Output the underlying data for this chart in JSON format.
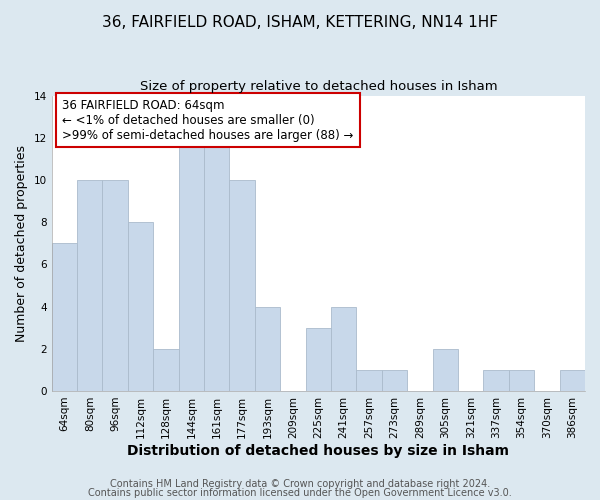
{
  "title": "36, FAIRFIELD ROAD, ISHAM, KETTERING, NN14 1HF",
  "subtitle": "Size of property relative to detached houses in Isham",
  "xlabel": "Distribution of detached houses by size in Isham",
  "ylabel": "Number of detached properties",
  "categories": [
    "64sqm",
    "80sqm",
    "96sqm",
    "112sqm",
    "128sqm",
    "144sqm",
    "161sqm",
    "177sqm",
    "193sqm",
    "209sqm",
    "225sqm",
    "241sqm",
    "257sqm",
    "273sqm",
    "289sqm",
    "305sqm",
    "321sqm",
    "337sqm",
    "354sqm",
    "370sqm",
    "386sqm"
  ],
  "values": [
    7,
    10,
    10,
    8,
    2,
    12,
    12,
    10,
    4,
    0,
    3,
    4,
    1,
    1,
    0,
    2,
    0,
    1,
    1,
    0,
    1
  ],
  "bar_color": "#c8d8ea",
  "bar_edge_color": "#aabbcc",
  "annotation_box_text": "36 FAIRFIELD ROAD: 64sqm\n← <1% of detached houses are smaller (0)\n>99% of semi-detached houses are larger (88) →",
  "annotation_box_facecolor": "#ffffff",
  "annotation_box_edgecolor": "#cc0000",
  "ylim": [
    0,
    14
  ],
  "yticks": [
    0,
    2,
    4,
    6,
    8,
    10,
    12,
    14
  ],
  "grid_color": "#ffffff",
  "plot_bg_color": "#ffffff",
  "fig_bg_color": "#dce8f0",
  "footer_line1": "Contains HM Land Registry data © Crown copyright and database right 2024.",
  "footer_line2": "Contains public sector information licensed under the Open Government Licence v3.0.",
  "title_fontsize": 11,
  "subtitle_fontsize": 9.5,
  "xlabel_fontsize": 10,
  "ylabel_fontsize": 9,
  "tick_fontsize": 7.5,
  "annotation_fontsize": 8.5,
  "footer_fontsize": 7
}
